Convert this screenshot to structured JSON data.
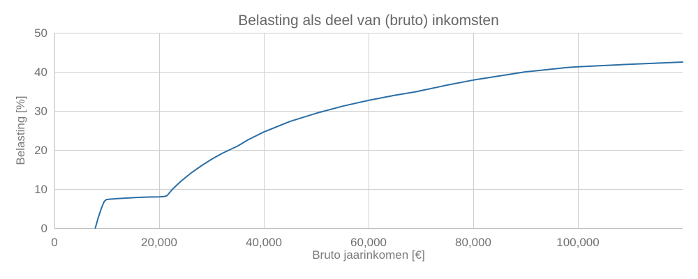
{
  "chart_data": {
    "type": "line",
    "title": "Belasting als deel van (bruto) inkomsten",
    "xlabel": "Bruto jaarinkomen [€]",
    "ylabel": "Belasting [%]",
    "xlim": [
      0,
      120000
    ],
    "ylim": [
      0,
      50
    ],
    "xticks": [
      0,
      20000,
      40000,
      60000,
      80000,
      100000
    ],
    "xtick_labels": [
      "0",
      "20,000",
      "40,000",
      "60,000",
      "80,000",
      "100,000"
    ],
    "yticks": [
      0,
      10,
      20,
      30,
      40,
      50
    ],
    "ytick_labels": [
      "0",
      "10",
      "20",
      "30",
      "40",
      "50"
    ],
    "grid": true,
    "series": [
      {
        "color": "#2a6ea6",
        "x": [
          7800,
          8400,
          9000,
          9500,
          9900,
          10500,
          12000,
          14000,
          16000,
          18000,
          20000,
          20800,
          21200,
          21500,
          22500,
          24000,
          26000,
          28000,
          30000,
          32000,
          35000,
          37000,
          40000,
          45000,
          50000,
          55000,
          60000,
          65000,
          69000,
          75000,
          80000,
          90000,
          98000,
          100000,
          110000,
          120000
        ],
        "y": [
          0,
          2.8,
          5.2,
          6.8,
          7.3,
          7.4,
          7.55,
          7.7,
          7.85,
          7.95,
          8.0,
          8.05,
          8.15,
          8.3,
          9.9,
          11.8,
          14.0,
          15.9,
          17.6,
          19.1,
          21.0,
          22.6,
          24.6,
          27.3,
          29.4,
          31.2,
          32.7,
          34.0,
          34.9,
          36.6,
          37.9,
          40.0,
          41.1,
          41.3,
          41.95,
          42.5
        ]
      }
    ]
  }
}
